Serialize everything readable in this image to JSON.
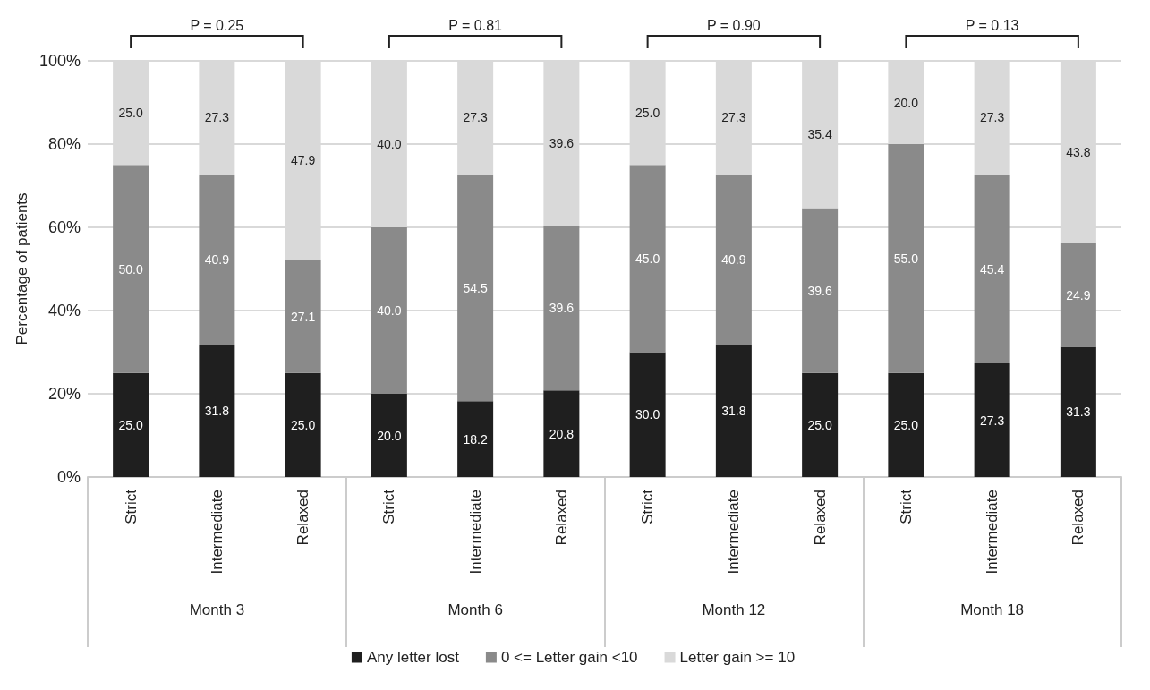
{
  "chart_data": {
    "type": "bar",
    "stacked": true,
    "ylabel": "Percentage of patients",
    "categories": [
      "Strict",
      "Intermediate",
      "Relaxed",
      "Strict",
      "Intermediate",
      "Relaxed",
      "Strict",
      "Intermediate",
      "Relaxed",
      "Strict",
      "Intermediate",
      "Relaxed"
    ],
    "series": [
      {
        "name": "Any letter lost",
        "color": "#1f1f1f",
        "values": [
          25.0,
          31.8,
          25.0,
          20.0,
          18.2,
          20.8,
          30.0,
          31.8,
          25.0,
          25.0,
          27.3,
          31.3
        ],
        "value_labels": [
          "25.0",
          "31.8",
          "25.0",
          "20.0",
          "18.2",
          "20.8",
          "30.0",
          "31.8",
          "25.0",
          "25.0",
          "27.3",
          "31.3"
        ]
      },
      {
        "name": "0 <= Letter gain <10",
        "color": "#8a8a8a",
        "values": [
          50.0,
          40.9,
          27.1,
          40.0,
          54.5,
          39.6,
          45.0,
          40.9,
          39.6,
          55.0,
          45.4,
          24.9
        ],
        "value_labels": [
          "50.0",
          "40.9",
          "27.1",
          "40.0",
          "54.5",
          "39.6",
          "45.0",
          "40.9",
          "39.6",
          "55.0",
          "45.4",
          "24.9"
        ]
      },
      {
        "name": "Letter gain >= 10",
        "color": "#d9d9d9",
        "values": [
          25.0,
          27.3,
          47.9,
          40.0,
          27.3,
          39.6,
          25.0,
          27.3,
          35.4,
          20.0,
          27.3,
          43.8
        ],
        "value_labels": [
          "25.0",
          "27.3",
          "47.9",
          "40.0",
          "27.3",
          "39.6",
          "25.0",
          "27.3",
          "35.4",
          "20.0",
          "27.3",
          "43.8"
        ]
      }
    ],
    "ylim": [
      0,
      100
    ],
    "yticks": [
      {
        "value": 0,
        "label": "0%"
      },
      {
        "value": 20,
        "label": "20%"
      },
      {
        "value": 40,
        "label": "40%"
      },
      {
        "value": 60,
        "label": "60%"
      },
      {
        "value": 80,
        "label": "80%"
      },
      {
        "value": 100,
        "label": "100%"
      }
    ],
    "grid": "y",
    "legend": "bottom",
    "annotations": [
      "P = 0.25",
      "P = 0.81",
      "P = 0.90",
      "P = 0.13",
      "Month 3",
      "Month 6",
      "Month 12",
      "Month 18"
    ]
  }
}
